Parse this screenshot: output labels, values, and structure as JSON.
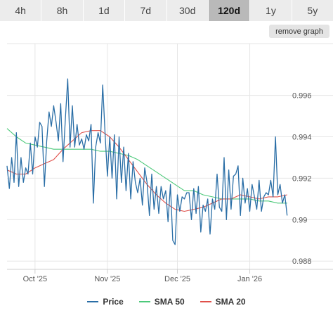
{
  "range_tabs": [
    {
      "label": "4h",
      "active": false
    },
    {
      "label": "8h",
      "active": false
    },
    {
      "label": "1d",
      "active": false
    },
    {
      "label": "7d",
      "active": false
    },
    {
      "label": "30d",
      "active": false
    },
    {
      "label": "120d",
      "active": true
    },
    {
      "label": "1y",
      "active": false
    },
    {
      "label": "5y",
      "active": false
    }
  ],
  "remove_graph_label": "remove graph",
  "colors": {
    "price": "#2a6ea6",
    "sma50": "#4cc97a",
    "sma20": "#e0504a",
    "grid": "#e6e6e6"
  },
  "chart_data": {
    "type": "line",
    "x_start": "2025-09-19",
    "ylim": [
      0.9876,
      0.9985
    ],
    "yticks": [
      0.988,
      0.99,
      0.992,
      0.994,
      0.996
    ],
    "ytick_labels": [
      "0.988",
      "0.99",
      "0.992",
      "0.994",
      "0.996"
    ],
    "xticks": [
      {
        "x": "2025-10-01",
        "label": "Oct '25"
      },
      {
        "x": "2025-11-01",
        "label": "Nov '25"
      },
      {
        "x": "2025-12-01",
        "label": "Dec '25"
      },
      {
        "x": "2026-01-01",
        "label": "Jan '26"
      }
    ],
    "grid": true,
    "legend_position": "bottom",
    "series": [
      {
        "name": "Price",
        "key": "price",
        "x": [
          "2025-09-19",
          "2025-09-20",
          "2025-09-21",
          "2025-09-22",
          "2025-09-23",
          "2025-09-24",
          "2025-09-25",
          "2025-09-26",
          "2025-09-27",
          "2025-09-28",
          "2025-09-29",
          "2025-09-30",
          "2025-10-01",
          "2025-10-02",
          "2025-10-03",
          "2025-10-04",
          "2025-10-05",
          "2025-10-06",
          "2025-10-07",
          "2025-10-08",
          "2025-10-09",
          "2025-10-10",
          "2025-10-11",
          "2025-10-12",
          "2025-10-13",
          "2025-10-14",
          "2025-10-15",
          "2025-10-16",
          "2025-10-17",
          "2025-10-18",
          "2025-10-19",
          "2025-10-20",
          "2025-10-21",
          "2025-10-22",
          "2025-10-23",
          "2025-10-24",
          "2025-10-25",
          "2025-10-26",
          "2025-10-27",
          "2025-10-28",
          "2025-10-29",
          "2025-10-30",
          "2025-10-31",
          "2025-11-01",
          "2025-11-02",
          "2025-11-03",
          "2025-11-04",
          "2025-11-05",
          "2025-11-06",
          "2025-11-07",
          "2025-11-08",
          "2025-11-09",
          "2025-11-10",
          "2025-11-11",
          "2025-11-12",
          "2025-11-13",
          "2025-11-14",
          "2025-11-15",
          "2025-11-16",
          "2025-11-17",
          "2025-11-18",
          "2025-11-19",
          "2025-11-20",
          "2025-11-21",
          "2025-11-22",
          "2025-11-23",
          "2025-11-24",
          "2025-11-25",
          "2025-11-26",
          "2025-11-27",
          "2025-11-28",
          "2025-11-29",
          "2025-11-30",
          "2025-12-01",
          "2025-12-02",
          "2025-12-03",
          "2025-12-04",
          "2025-12-05",
          "2025-12-06",
          "2025-12-07",
          "2025-12-08",
          "2025-12-09",
          "2025-12-10",
          "2025-12-11",
          "2025-12-12",
          "2025-12-13",
          "2025-12-14",
          "2025-12-15",
          "2025-12-16",
          "2025-12-17",
          "2025-12-18",
          "2025-12-19",
          "2025-12-20",
          "2025-12-21",
          "2025-12-22",
          "2025-12-23",
          "2025-12-24",
          "2025-12-25",
          "2025-12-26",
          "2025-12-27",
          "2025-12-28",
          "2025-12-29",
          "2025-12-30",
          "2025-12-31",
          "2026-01-01",
          "2026-01-02",
          "2026-01-03",
          "2026-01-04",
          "2026-01-05",
          "2026-01-06",
          "2026-01-07",
          "2026-01-08",
          "2026-01-09",
          "2026-01-10",
          "2026-01-11",
          "2026-01-12",
          "2026-01-13",
          "2026-01-14",
          "2026-01-15",
          "2026-01-16",
          "2026-01-17"
        ],
        "values": [
          0.9926,
          0.9915,
          0.993,
          0.9918,
          0.9942,
          0.9916,
          0.993,
          0.9918,
          0.9925,
          0.9922,
          0.9937,
          0.9922,
          0.994,
          0.9935,
          0.9947,
          0.9945,
          0.9916,
          0.9938,
          0.9952,
          0.9945,
          0.9955,
          0.9947,
          0.9938,
          0.9956,
          0.9928,
          0.9949,
          0.9968,
          0.9935,
          0.9955,
          0.9935,
          0.9946,
          0.9936,
          0.9939,
          0.9934,
          0.9941,
          0.9938,
          0.9946,
          0.9908,
          0.9935,
          0.9942,
          0.9937,
          0.9965,
          0.9942,
          0.9921,
          0.994,
          0.992,
          0.9941,
          0.991,
          0.994,
          0.9918,
          0.9935,
          0.9914,
          0.9932,
          0.991,
          0.9928,
          0.9918,
          0.9913,
          0.992,
          0.9907,
          0.9925,
          0.9918,
          0.9902,
          0.9922,
          0.9905,
          0.9916,
          0.9903,
          0.9916,
          0.991,
          0.9914,
          0.9899,
          0.9917,
          0.989,
          0.9888,
          0.9912,
          0.9904,
          0.9911,
          0.991,
          0.9913,
          0.9913,
          0.99,
          0.9915,
          0.9903,
          0.9916,
          0.9894,
          0.9907,
          0.9904,
          0.991,
          0.9893,
          0.991,
          0.9905,
          0.9922,
          0.9906,
          0.9904,
          0.993,
          0.99,
          0.9924,
          0.9905,
          0.9921,
          0.9922,
          0.9926,
          0.9902,
          0.992,
          0.9908,
          0.9915,
          0.9904,
          0.9917,
          0.9911,
          0.9905,
          0.9919,
          0.9904,
          0.9911,
          0.9913,
          0.9912,
          0.9919,
          0.9911,
          0.994,
          0.9912,
          0.9917,
          0.9908,
          0.9912,
          0.9902
        ]
      },
      {
        "name": "SMA 50",
        "key": "sma50",
        "x": [
          "2025-09-19",
          "2025-09-23",
          "2025-09-27",
          "2025-10-01",
          "2025-10-05",
          "2025-10-09",
          "2025-10-13",
          "2025-10-17",
          "2025-10-21",
          "2025-10-25",
          "2025-10-29",
          "2025-11-02",
          "2025-11-06",
          "2025-11-10",
          "2025-11-14",
          "2025-11-18",
          "2025-11-22",
          "2025-11-26",
          "2025-11-30",
          "2025-12-04",
          "2025-12-08",
          "2025-12-12",
          "2025-12-16",
          "2025-12-20",
          "2025-12-24",
          "2025-12-28",
          "2026-01-01",
          "2026-01-05",
          "2026-01-09",
          "2026-01-13",
          "2026-01-17"
        ],
        "values": [
          0.9944,
          0.994,
          0.9937,
          0.9936,
          0.9935,
          0.9934,
          0.9934,
          0.9934,
          0.9934,
          0.9934,
          0.9933,
          0.9933,
          0.9932,
          0.9931,
          0.9929,
          0.9926,
          0.9923,
          0.992,
          0.9917,
          0.9914,
          0.9914,
          0.9912,
          0.9911,
          0.991,
          0.991,
          0.991,
          0.991,
          0.9909,
          0.9909,
          0.9908,
          0.9908
        ]
      },
      {
        "name": "SMA 20",
        "key": "sma20",
        "x": [
          "2025-09-19",
          "2025-09-23",
          "2025-09-27",
          "2025-10-01",
          "2025-10-05",
          "2025-10-09",
          "2025-10-13",
          "2025-10-17",
          "2025-10-21",
          "2025-10-25",
          "2025-10-29",
          "2025-11-02",
          "2025-11-06",
          "2025-11-10",
          "2025-11-14",
          "2025-11-18",
          "2025-11-22",
          "2025-11-26",
          "2025-11-30",
          "2025-12-04",
          "2025-12-08",
          "2025-12-12",
          "2025-12-16",
          "2025-12-20",
          "2025-12-24",
          "2025-12-28",
          "2026-01-01",
          "2026-01-05",
          "2026-01-09",
          "2026-01-13",
          "2026-01-17"
        ],
        "values": [
          0.9924,
          0.9922,
          0.9922,
          0.9925,
          0.9927,
          0.9929,
          0.9934,
          0.9938,
          0.9942,
          0.9943,
          0.9943,
          0.994,
          0.9935,
          0.9929,
          0.9923,
          0.9917,
          0.9912,
          0.9908,
          0.9905,
          0.9904,
          0.9905,
          0.9906,
          0.9908,
          0.991,
          0.991,
          0.9912,
          0.9911,
          0.991,
          0.9911,
          0.9911,
          0.9912
        ]
      }
    ]
  }
}
